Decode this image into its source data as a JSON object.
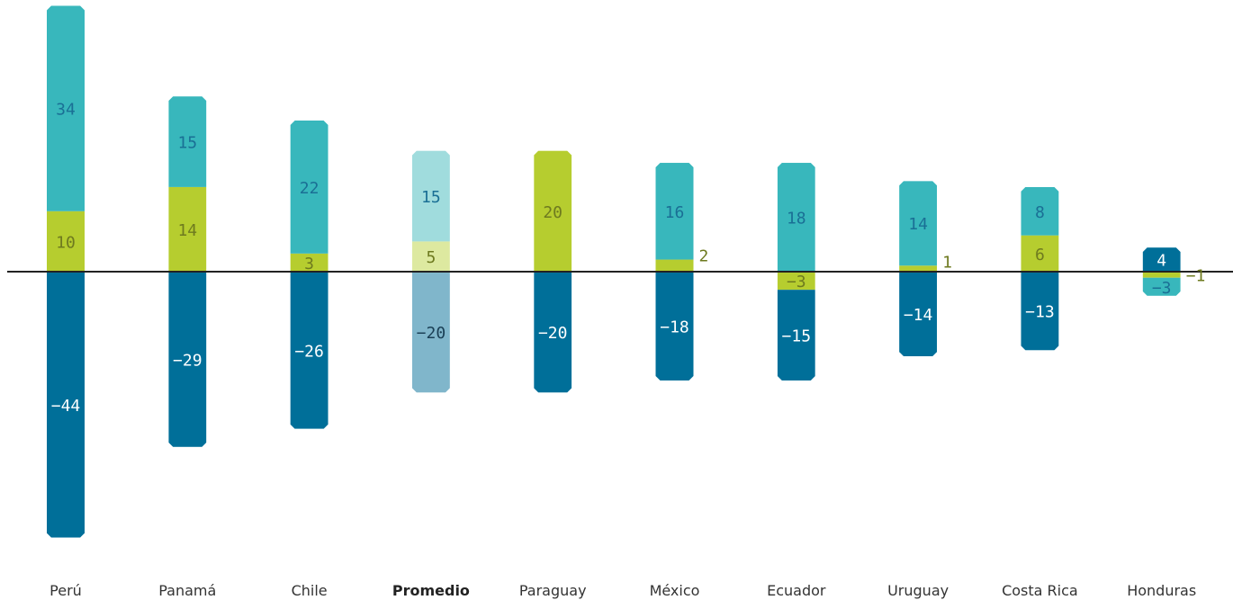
{
  "chart_data": {
    "type": "bar",
    "stacked": true,
    "title": "",
    "xlabel": "",
    "ylabel": "",
    "ylim": [
      -46,
      46
    ],
    "grid": false,
    "legend": "none",
    "categories": [
      "Perú",
      "Panamá",
      "Chile",
      "Promedio",
      "Paraguay",
      "México",
      "Ecuador",
      "Uruguay",
      "Costa Rica",
      "Honduras"
    ],
    "highlight_category": "Promedio",
    "colors": {
      "teal": "#38b7bc",
      "lime": "#b6cd2f",
      "navy": "#006f99",
      "teal_light": "#a0dcdd",
      "lime_light": "#dde9a0",
      "navy_light": "#80b6cb",
      "teal_text": "#1a6f95",
      "lime_text": "#6e7a1f",
      "navy_text": "#ffffff",
      "axis": "#222222"
    },
    "series": [
      {
        "key": "lime",
        "values": [
          10,
          14,
          3,
          5,
          20,
          2,
          -3,
          1,
          6,
          -1
        ]
      },
      {
        "key": "teal",
        "values": [
          34,
          15,
          22,
          15,
          0,
          16,
          18,
          14,
          8,
          -3
        ]
      },
      {
        "key": "navy",
        "values": [
          -44,
          -29,
          -26,
          -20,
          -20,
          -18,
          -15,
          -14,
          -13,
          4
        ]
      }
    ],
    "value_labels": [
      [
        "10",
        "34",
        "−44"
      ],
      [
        "14",
        "15",
        "−29"
      ],
      [
        "3",
        "22",
        "−26"
      ],
      [
        "5",
        "15",
        "−20"
      ],
      [
        "20",
        "",
        "−20"
      ],
      [
        "2",
        "16",
        "−18"
      ],
      [
        "−3",
        "18",
        "−15"
      ],
      [
        "1",
        "14",
        "−14"
      ],
      [
        "6",
        "8",
        "−13"
      ],
      [
        "−1",
        "−3",
        "4"
      ]
    ]
  }
}
